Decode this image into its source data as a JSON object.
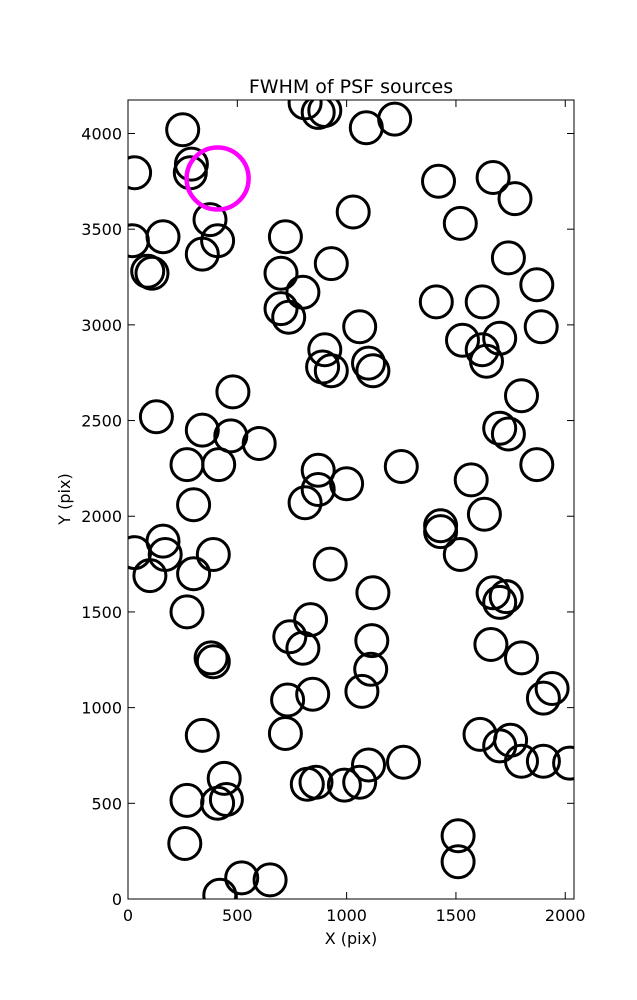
{
  "chart_data": {
    "type": "scatter",
    "title": "FWHM of PSF sources",
    "xlabel": "X (pix)",
    "ylabel": "Y (pix)",
    "xlim": [
      0,
      2040
    ],
    "ylim": [
      0,
      4175
    ],
    "xticks": [
      0,
      500,
      1000,
      1500,
      2000
    ],
    "yticks": [
      0,
      500,
      1000,
      1500,
      2000,
      2500,
      3000,
      3500,
      4000
    ],
    "grid": false,
    "marker": "open-circle",
    "colors": {
      "default": "#000000",
      "highlight": "#ff00ff"
    },
    "series": [
      {
        "role": "sources",
        "points": [
          [
            250,
            4020
          ],
          [
            290,
            3840
          ],
          [
            285,
            3795
          ],
          [
            30,
            3795
          ],
          [
            375,
            3550
          ],
          [
            340,
            3370
          ],
          [
            410,
            3440
          ],
          [
            20,
            3440
          ],
          [
            160,
            3460
          ],
          [
            90,
            3280
          ],
          [
            110,
            3270
          ],
          [
            810,
            4160
          ],
          [
            870,
            4110
          ],
          [
            900,
            4120
          ],
          [
            1090,
            4030
          ],
          [
            1220,
            4075
          ],
          [
            1030,
            3590
          ],
          [
            930,
            3320
          ],
          [
            720,
            3460
          ],
          [
            700,
            3270
          ],
          [
            800,
            3170
          ],
          [
            700,
            3085
          ],
          [
            735,
            3040
          ],
          [
            1060,
            2990
          ],
          [
            900,
            2870
          ],
          [
            890,
            2780
          ],
          [
            930,
            2760
          ],
          [
            1100,
            2800
          ],
          [
            1120,
            2760
          ],
          [
            480,
            2650
          ],
          [
            130,
            2520
          ],
          [
            340,
            2450
          ],
          [
            470,
            2420
          ],
          [
            600,
            2380
          ],
          [
            270,
            2270
          ],
          [
            415,
            2270
          ],
          [
            870,
            2240
          ],
          [
            870,
            2140
          ],
          [
            810,
            2070
          ],
          [
            1000,
            2170
          ],
          [
            1250,
            2260
          ],
          [
            300,
            2060
          ],
          [
            30,
            1810
          ],
          [
            100,
            1690
          ],
          [
            160,
            1870
          ],
          [
            170,
            1800
          ],
          [
            390,
            1800
          ],
          [
            300,
            1700
          ],
          [
            270,
            1500
          ],
          [
            925,
            1750
          ],
          [
            1120,
            1600
          ],
          [
            835,
            1460
          ],
          [
            740,
            1370
          ],
          [
            800,
            1310
          ],
          [
            1115,
            1350
          ],
          [
            1110,
            1200
          ],
          [
            380,
            1260
          ],
          [
            390,
            1240
          ],
          [
            730,
            1040
          ],
          [
            845,
            1070
          ],
          [
            1070,
            1085
          ],
          [
            720,
            865
          ],
          [
            340,
            855
          ],
          [
            440,
            630
          ],
          [
            410,
            500
          ],
          [
            450,
            520
          ],
          [
            270,
            515
          ],
          [
            260,
            290
          ],
          [
            420,
            20
          ],
          [
            520,
            110
          ],
          [
            650,
            100
          ],
          [
            820,
            600
          ],
          [
            860,
            610
          ],
          [
            990,
            595
          ],
          [
            1060,
            610
          ],
          [
            1100,
            700
          ],
          [
            1260,
            715
          ],
          [
            1420,
            3750
          ],
          [
            1520,
            3530
          ],
          [
            1670,
            3770
          ],
          [
            1770,
            3660
          ],
          [
            1740,
            3350
          ],
          [
            1870,
            3210
          ],
          [
            1410,
            3120
          ],
          [
            1620,
            3120
          ],
          [
            1890,
            2990
          ],
          [
            1530,
            2920
          ],
          [
            1620,
            2870
          ],
          [
            1640,
            2810
          ],
          [
            1700,
            2930
          ],
          [
            1800,
            2630
          ],
          [
            1700,
            2460
          ],
          [
            1740,
            2430
          ],
          [
            1870,
            2270
          ],
          [
            1570,
            2190
          ],
          [
            1630,
            2010
          ],
          [
            1430,
            1950
          ],
          [
            1430,
            1920
          ],
          [
            1520,
            1800
          ],
          [
            1670,
            1600
          ],
          [
            1700,
            1550
          ],
          [
            1730,
            1580
          ],
          [
            1660,
            1330
          ],
          [
            1800,
            1260
          ],
          [
            1940,
            1100
          ],
          [
            1900,
            1050
          ],
          [
            1610,
            860
          ],
          [
            1700,
            800
          ],
          [
            1750,
            830
          ],
          [
            1800,
            720
          ],
          [
            1900,
            720
          ],
          [
            2020,
            710
          ],
          [
            1510,
            330
          ],
          [
            1510,
            195
          ]
        ]
      },
      {
        "role": "highlight",
        "points": [
          [
            410,
            3765
          ]
        ]
      }
    ]
  }
}
